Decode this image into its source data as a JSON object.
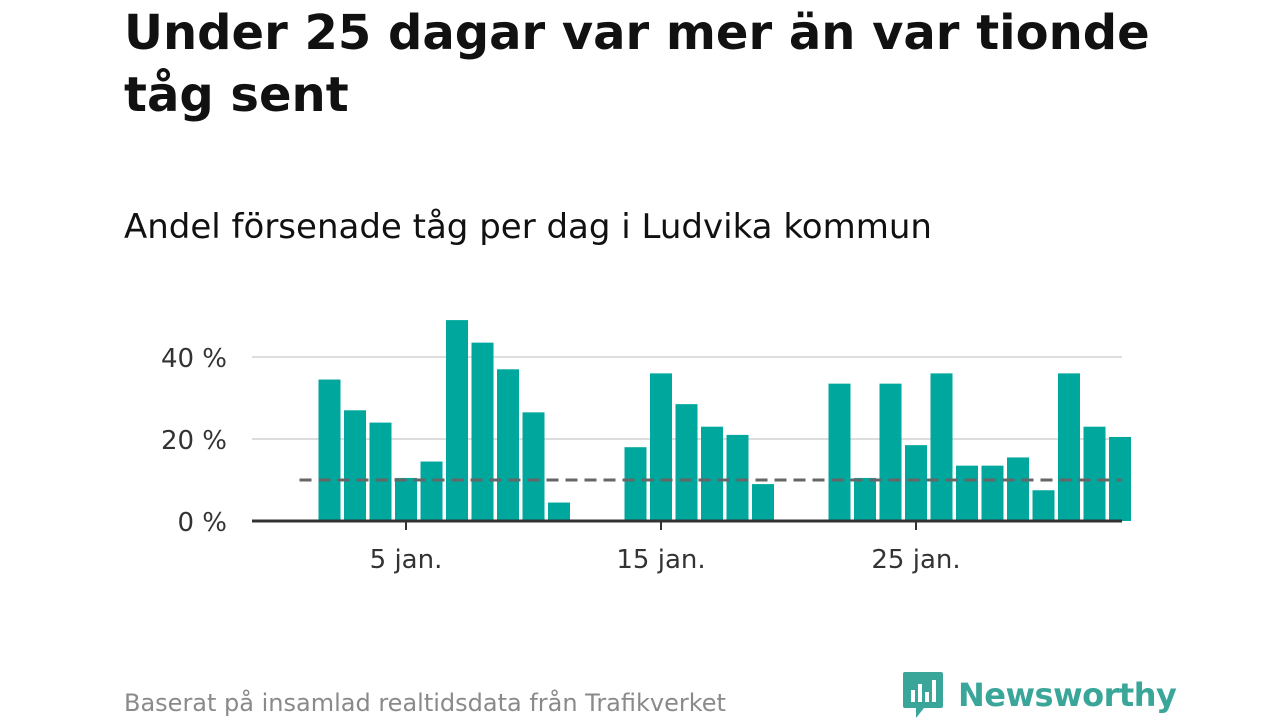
{
  "title": "Under 25 dagar var mer än var tionde tåg sent",
  "subtitle": "Andel försenade tåg per dag i Ludvika kommun",
  "source": "Baserat på insamlad realtidsdata från Trafikverket",
  "brand": {
    "name": "Newsworthy",
    "icon": "newsworthy-logo-icon",
    "color": "#3aa699"
  },
  "chart_data": {
    "type": "bar",
    "title": "Under 25 dagar var mer än var tionde tåg sent",
    "subtitle": "Andel försenade tåg per dag i Ludvika kommun",
    "xlabel": "",
    "ylabel": "",
    "x": [
      2,
      3,
      4,
      5,
      6,
      7,
      8,
      9,
      10,
      11,
      12,
      13,
      14,
      15,
      16,
      17,
      18,
      19,
      20,
      21,
      22,
      23,
      24,
      25,
      26,
      27,
      28,
      29,
      30,
      31,
      32,
      33
    ],
    "values": [
      34.5,
      27,
      24,
      10.5,
      14.5,
      49,
      43.5,
      37,
      26.5,
      4.5,
      null,
      null,
      18,
      36,
      28.5,
      23,
      21,
      9,
      null,
      null,
      33.5,
      10.5,
      33.5,
      18.5,
      36,
      13.5,
      13.5,
      15.5,
      7.5,
      36,
      23,
      20.5
    ],
    "ylim": [
      0,
      50
    ],
    "yticks": [
      0,
      20,
      40
    ],
    "ytick_labels": [
      "0 %",
      "20 %",
      "40 %"
    ],
    "xticks": [
      5,
      15,
      25
    ],
    "xtick_labels": [
      "5 jan.",
      "15 jan.",
      "25 jan."
    ],
    "reference_line": {
      "value": 10,
      "style": "dashed",
      "color": "#666666"
    },
    "bar_color": "#00a79d",
    "grid": true,
    "legend": "none"
  }
}
